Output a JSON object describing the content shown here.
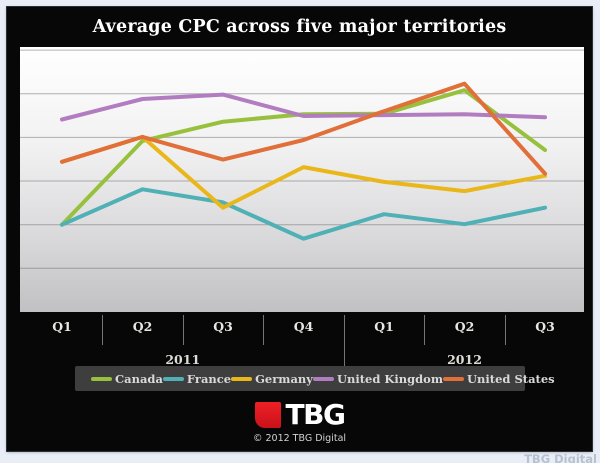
{
  "page": {
    "watermark": "TBG Digital"
  },
  "chart": {
    "title": "Average CPC across five major territories"
  },
  "chart_data": {
    "type": "line",
    "title": "Average CPC across five major territories",
    "x_categories": [
      "Q1",
      "Q2",
      "Q3",
      "Q4",
      "Q1",
      "Q2",
      "Q3"
    ],
    "x_groups": [
      {
        "label": "2011",
        "span": 4
      },
      {
        "label": "2012",
        "span": 3
      }
    ],
    "y_axis_labels": "none",
    "ylim": [
      0,
      6.1
    ],
    "grid": "horizontal",
    "legend_position": "bottom",
    "series": [
      {
        "name": "Canada",
        "color": "#97c13c",
        "values": [
          2.0,
          3.92,
          4.36,
          4.53,
          4.54,
          5.08,
          3.71
        ]
      },
      {
        "name": "France",
        "color": "#4fb0b5",
        "values": [
          2.0,
          2.81,
          2.51,
          1.68,
          2.24,
          2.01,
          2.39
        ]
      },
      {
        "name": "Germany",
        "color": "#e9b719",
        "values": [
          3.44,
          4.01,
          2.39,
          3.32,
          2.98,
          2.77,
          3.12
        ]
      },
      {
        "name": "United Kingdom",
        "color": "#b27cc1",
        "values": [
          4.41,
          4.88,
          4.98,
          4.49,
          4.51,
          4.53,
          4.46
        ]
      },
      {
        "name": "United States",
        "color": "#e06f39",
        "values": [
          3.44,
          4.01,
          3.49,
          3.94,
          4.6,
          5.23,
          3.17
        ]
      }
    ]
  },
  "footer": {
    "logo_text": "TBG",
    "copyright": "© 2012 TBG Digital"
  }
}
